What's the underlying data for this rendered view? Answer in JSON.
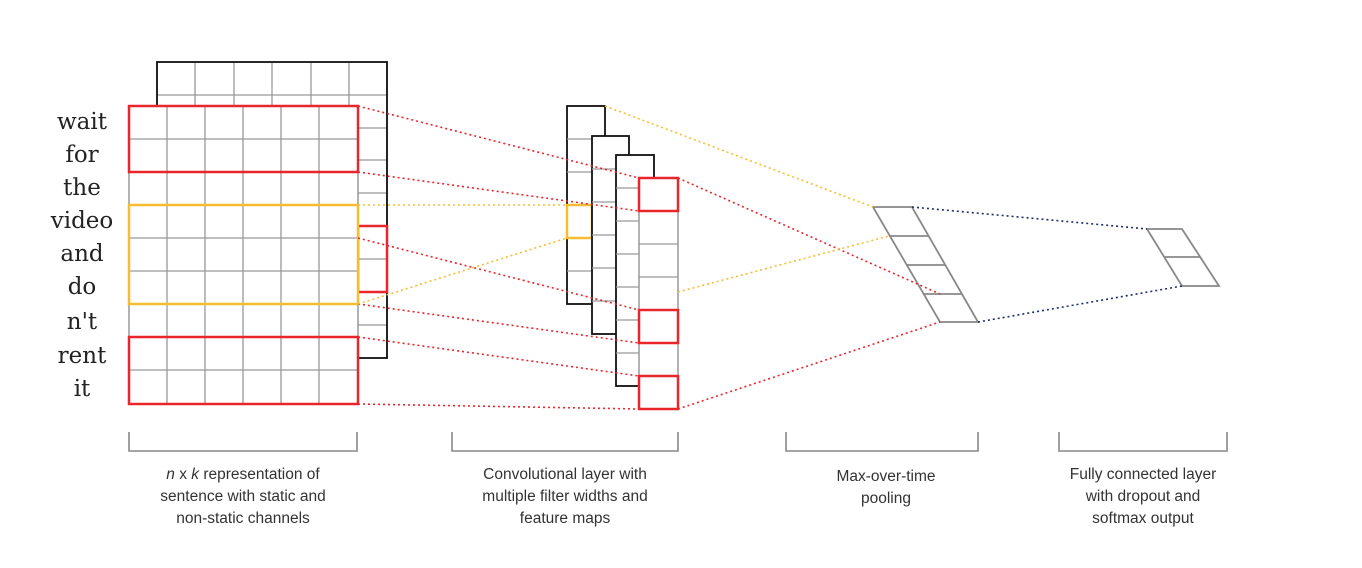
{
  "words": [
    "wait",
    "for",
    "the",
    "video",
    "and",
    "do",
    "n't",
    "rent",
    "it"
  ],
  "captions": {
    "representation": {
      "italic_n": "n",
      "x": " x ",
      "italic_k": "k",
      "rest": " representation of",
      "line2": "sentence with static and",
      "line3": "non-static channels"
    },
    "convolution": {
      "line1": "Convolutional layer with",
      "line2": "multiple filter widths and",
      "line3": "feature maps"
    },
    "pooling": {
      "line1": "Max-over-time",
      "line2": "pooling"
    },
    "fully_connected": {
      "line1": "Fully connected layer",
      "line2": "with dropout and",
      "line3": "softmax output"
    }
  },
  "colors": {
    "grid": "#999999",
    "outline": "#111111",
    "red": "#e8262c",
    "yellow": "#f6bd33",
    "navy": "#1f2d6b",
    "bracket": "#888888"
  }
}
